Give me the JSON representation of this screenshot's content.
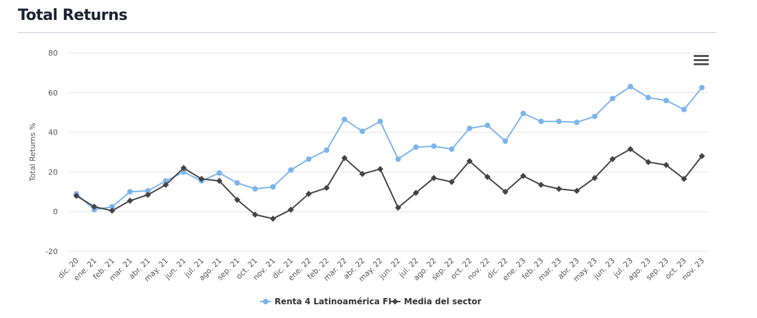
{
  "header": {
    "title": "Total Returns"
  },
  "menu": {
    "icon": "hamburger-menu-icon"
  },
  "colors": {
    "fund": "#7cb5ec",
    "sector": "#434348",
    "grid": "#e6e6e6",
    "title": "#1a2233"
  },
  "chart_data": {
    "type": "line",
    "title": "",
    "ylabel": "Total Returns %",
    "xlabel": "",
    "ylim": [
      -20,
      80
    ],
    "yticks": [
      -20,
      0,
      20,
      40,
      60,
      80
    ],
    "grid": true,
    "legend_position": "bottom-center",
    "categories": [
      "dic. 20",
      "ene. 21",
      "feb. 21",
      "mar. 21",
      "abr. 21",
      "may. 21",
      "jun. 21",
      "jul. 21",
      "ago. 21",
      "sep. 21",
      "oct. 21",
      "nov. 21",
      "dic. 21",
      "ene. 22",
      "feb. 22",
      "mar. 22",
      "abr. 22",
      "may. 22",
      "jun. 22",
      "jul. 22",
      "ago. 22",
      "sep. 22",
      "oct. 22",
      "nov. 22",
      "dic. 22",
      "ene. 23",
      "feb. 23",
      "mar. 23",
      "abr. 23",
      "may. 23",
      "jun. 23",
      "jul. 23",
      "ago. 23",
      "sep. 23",
      "oct. 23",
      "nov. 23"
    ],
    "series": [
      {
        "name": "Renta 4 Latinoamérica FI",
        "marker": "circle",
        "values": [
          9,
          1,
          2.5,
          10,
          10.5,
          15.5,
          20,
          15.5,
          19.5,
          14.5,
          11.5,
          12.5,
          21,
          26.5,
          31,
          46.5,
          40.5,
          45.5,
          26.5,
          32.5,
          33,
          31.5,
          42,
          43.5,
          35.5,
          49.5,
          45.5,
          45.5,
          45,
          48,
          57,
          63,
          57.5,
          56,
          51.5,
          62.5
        ]
      },
      {
        "name": "Media del sector",
        "marker": "diamond",
        "values": [
          8,
          2.5,
          0.5,
          5.5,
          8.5,
          13.5,
          22,
          16.5,
          15.5,
          6,
          -1.5,
          -3.5,
          1,
          9,
          12,
          27,
          19,
          21.5,
          2,
          9.5,
          17,
          15,
          25.5,
          17.5,
          10,
          18,
          13.5,
          11.5,
          10.5,
          17,
          26.5,
          31.5,
          25,
          23.5,
          16.5,
          28
        ]
      }
    ]
  }
}
